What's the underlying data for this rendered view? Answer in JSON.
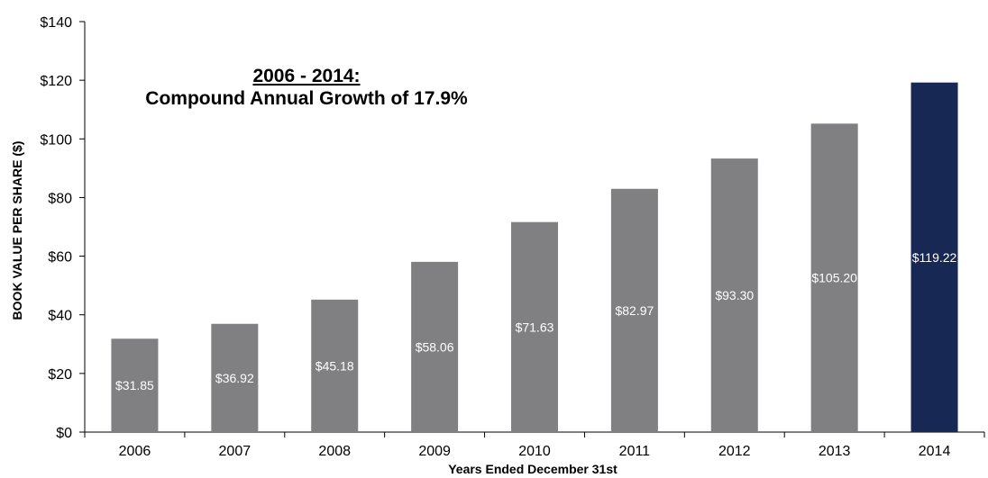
{
  "chart_data": {
    "type": "bar",
    "title": "",
    "xlabel": "Years Ended December 31st",
    "ylabel": "BOOK VALUE PER SHARE ($)",
    "categories": [
      "2006",
      "2007",
      "2008",
      "2009",
      "2010",
      "2011",
      "2012",
      "2013",
      "2014"
    ],
    "values": [
      31.85,
      36.92,
      45.18,
      58.06,
      71.63,
      82.97,
      93.3,
      105.2,
      119.22
    ],
    "data_labels": [
      "$31.85",
      "$36.92",
      "$45.18",
      "$58.06",
      "$71.63",
      "$82.97",
      "$93.30",
      "$105.20",
      "$119.22"
    ],
    "ylim": [
      0,
      140
    ],
    "yticks": [
      0,
      20,
      40,
      60,
      80,
      100,
      120,
      140
    ],
    "ytick_labels": [
      "$0",
      "$20",
      "$40",
      "$60",
      "$80",
      "$100",
      "$120",
      "$140"
    ],
    "grid": false,
    "colors": {
      "bar": "#808083",
      "highlight_bar": "#172855",
      "bar_label": "#ffffff"
    },
    "highlight_index": 8,
    "annotation": {
      "line1": "2006 - 2014:",
      "line2": "Compound Annual Growth of 17.9%"
    }
  }
}
